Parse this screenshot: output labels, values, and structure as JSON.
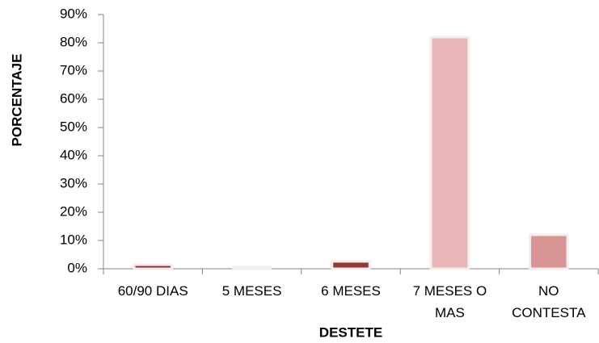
{
  "chart_data": {
    "type": "bar",
    "x_label": "DESTETE",
    "y_label": "PORCENTAJE",
    "categories": [
      "60/90 DIAS",
      "5 MESES",
      "6 MESES",
      "7 MESES O MAS",
      "NO CONTESTA"
    ],
    "values": [
      1.4,
      0.5,
      2.6,
      82,
      12
    ],
    "colors": [
      "#8b2f2f",
      "#f0d2d2",
      "#973838",
      "#e8b6b6",
      "#d99494"
    ],
    "ylim": [
      0,
      90
    ],
    "yticks": [
      {
        "value": 0,
        "label": "0%"
      },
      {
        "value": 10,
        "label": "10%"
      },
      {
        "value": 20,
        "label": "20%"
      },
      {
        "value": 30,
        "label": "30%"
      },
      {
        "value": 40,
        "label": "40%"
      },
      {
        "value": 50,
        "label": "50%"
      },
      {
        "value": 60,
        "label": "60%"
      },
      {
        "value": 70,
        "label": "70%"
      },
      {
        "value": 80,
        "label": "80%"
      },
      {
        "value": 90,
        "label": "90%"
      }
    ],
    "grid": false
  }
}
